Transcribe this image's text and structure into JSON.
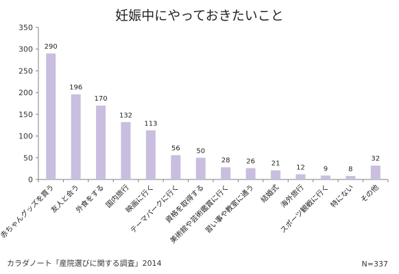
{
  "chart_data": {
    "type": "bar",
    "title": "妊娠中にやっておきたいこと",
    "categories": [
      "赤ちゃんグッズを買う",
      "友人と会う",
      "外食をする",
      "国内旅行",
      "映画に行く",
      "テーマパークに行く",
      "資格を取得する",
      "美術館や芸術鑑賞に行く",
      "習い事や教室に通う",
      "結婚式",
      "海外旅行",
      "スポーツ観戦に行く",
      "特にない",
      "その他"
    ],
    "values": [
      290,
      196,
      170,
      132,
      113,
      56,
      50,
      28,
      26,
      21,
      12,
      9,
      8,
      32
    ],
    "ylim": [
      0,
      350
    ],
    "yticks": [
      0,
      50,
      100,
      150,
      200,
      250,
      300,
      350
    ],
    "xlabel": "",
    "ylabel": "",
    "grid": false,
    "legend": "none",
    "bar_color": "#c9bedf",
    "axis_color": "#7f7f7f"
  },
  "footer": {
    "source": "カラダノート「産院選びに関する調査」2014",
    "n": "N=337"
  }
}
